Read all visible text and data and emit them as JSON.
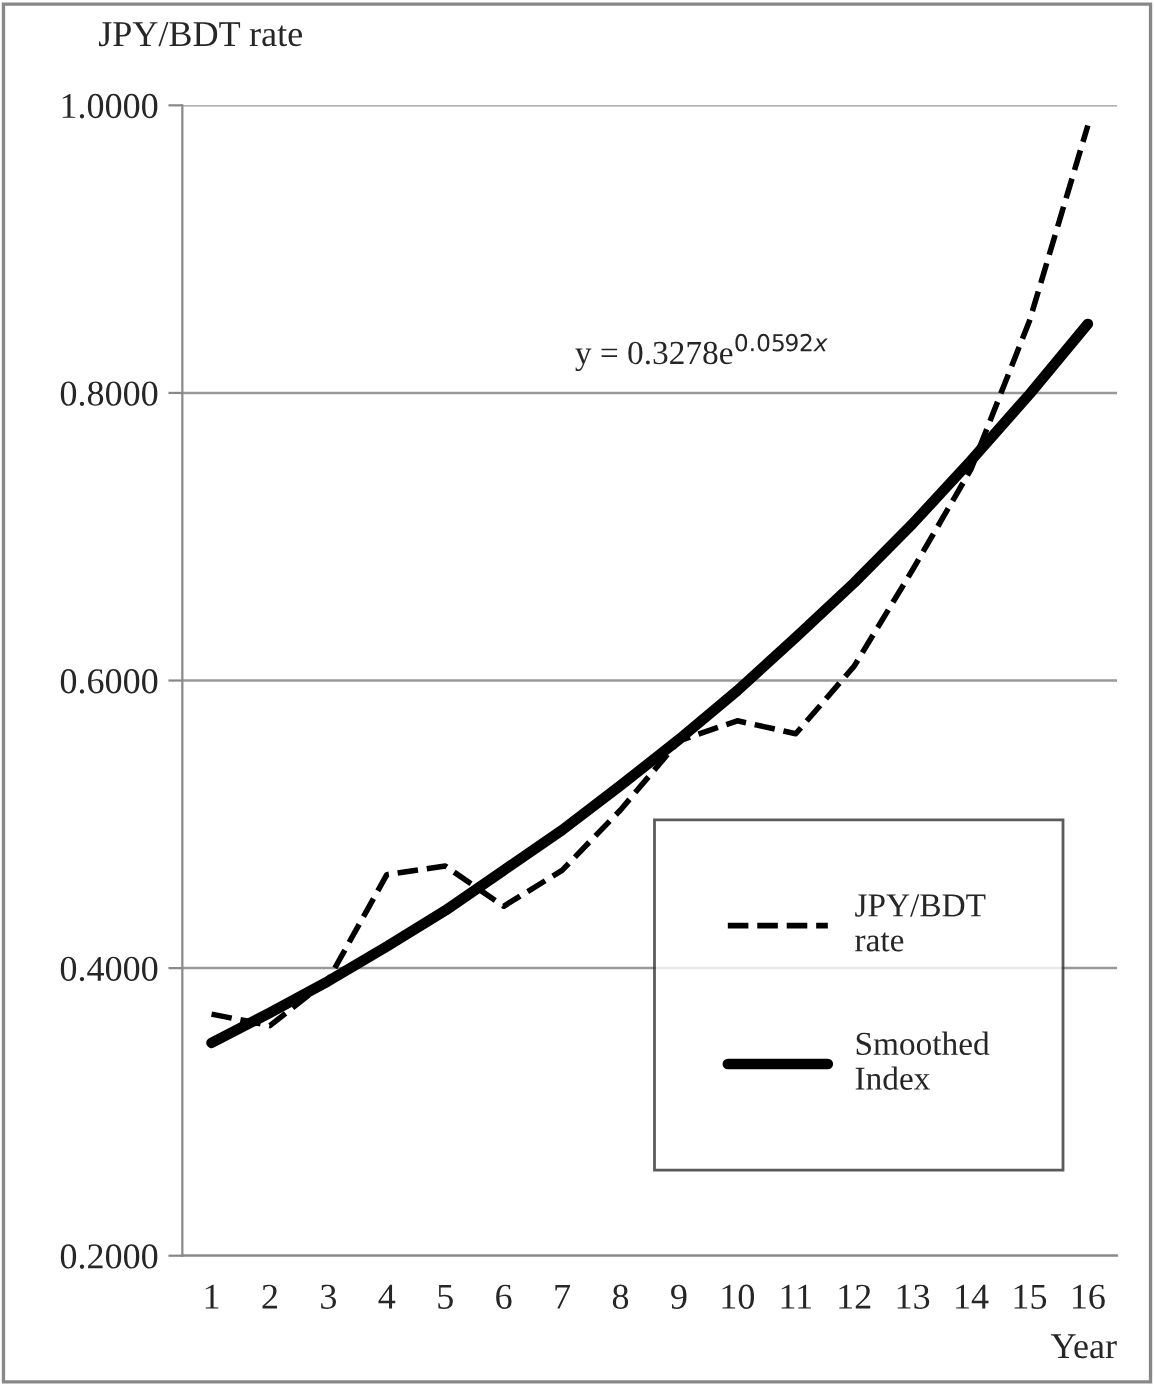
{
  "chart_data": {
    "type": "line",
    "xlabel": "Year",
    "ylabel": "JPY/BDT rate",
    "categories": [
      "1",
      "2",
      "3",
      "4",
      "5",
      "6",
      "7",
      "8",
      "9",
      "10",
      "11",
      "12",
      "13",
      "14",
      "15",
      "16"
    ],
    "series": [
      {
        "name": "JPY/BDT\nrate",
        "color": "#000000",
        "line_style": "dashed",
        "values": [
          0.368,
          0.36,
          0.392,
          0.465,
          0.471,
          0.443,
          0.468,
          0.51,
          0.558,
          0.572,
          0.563,
          0.61,
          0.677,
          0.747,
          0.85,
          0.986
        ]
      },
      {
        "name": "Smoothed\nIndex",
        "color": "#000000",
        "line_style": "solid",
        "values": [
          0.348,
          0.369,
          0.391,
          0.415,
          0.44,
          0.468,
          0.496,
          0.527,
          0.559,
          0.593,
          0.63,
          0.668,
          0.709,
          0.753,
          0.799,
          0.848
        ]
      }
    ],
    "ylim": [
      0.2,
      1.0
    ],
    "yticks": [
      {
        "value": 0.2,
        "label": "0.2000"
      },
      {
        "value": 0.4,
        "label": "0.4000"
      },
      {
        "value": 0.6,
        "label": "0.6000"
      },
      {
        "value": 0.8,
        "label": "0.8000"
      },
      {
        "value": 1.0,
        "label": "1.0000"
      }
    ],
    "grid": "y",
    "legend": "bottom right",
    "marker": "none",
    "annotations": [
      "y = 0.3278e$^{0.0592x}$"
    ]
  }
}
